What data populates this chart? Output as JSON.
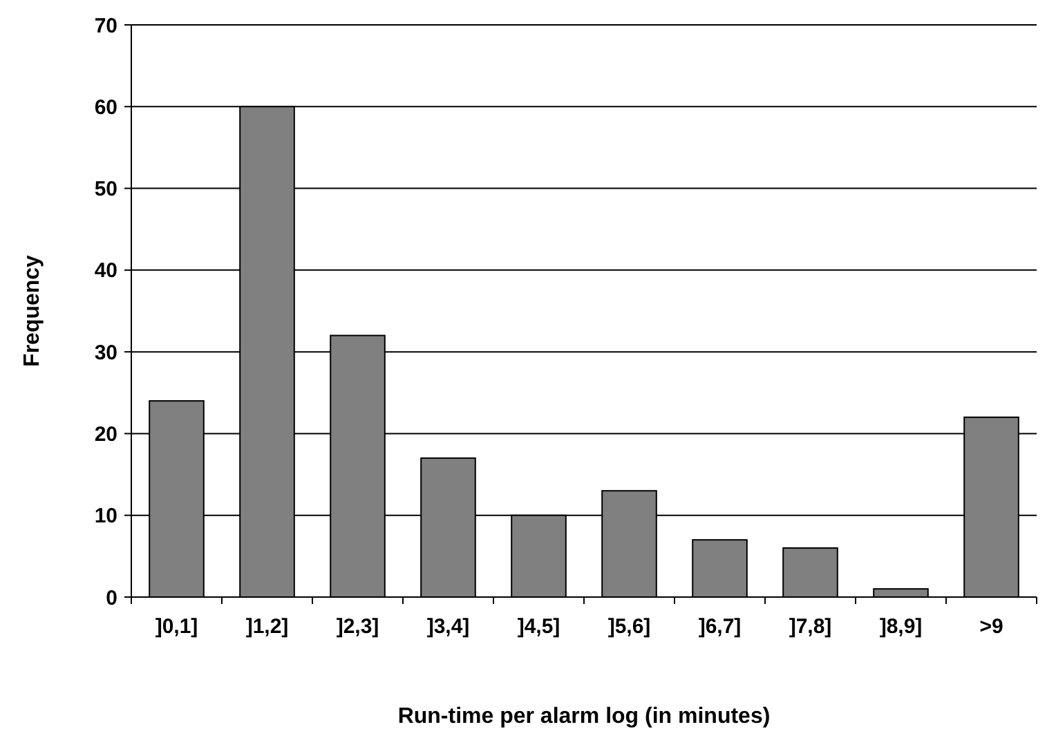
{
  "chart_data": {
    "type": "bar",
    "xlabel": "Run-time per alarm log (in minutes)",
    "ylabel": "Frequency",
    "categories": [
      "]0,1]",
      "]1,2]",
      "]2,3]",
      "]3,4]",
      "]4,5]",
      "]5,6]",
      "]6,7]",
      "]7,8]",
      "]8,9]",
      ">9"
    ],
    "values": [
      24,
      60,
      32,
      17,
      10,
      13,
      7,
      6,
      1,
      22
    ],
    "color": "#808080",
    "ylim": [
      0,
      70
    ],
    "yticks": [
      0,
      10,
      20,
      30,
      40,
      50,
      60,
      70
    ],
    "grid": "y"
  }
}
